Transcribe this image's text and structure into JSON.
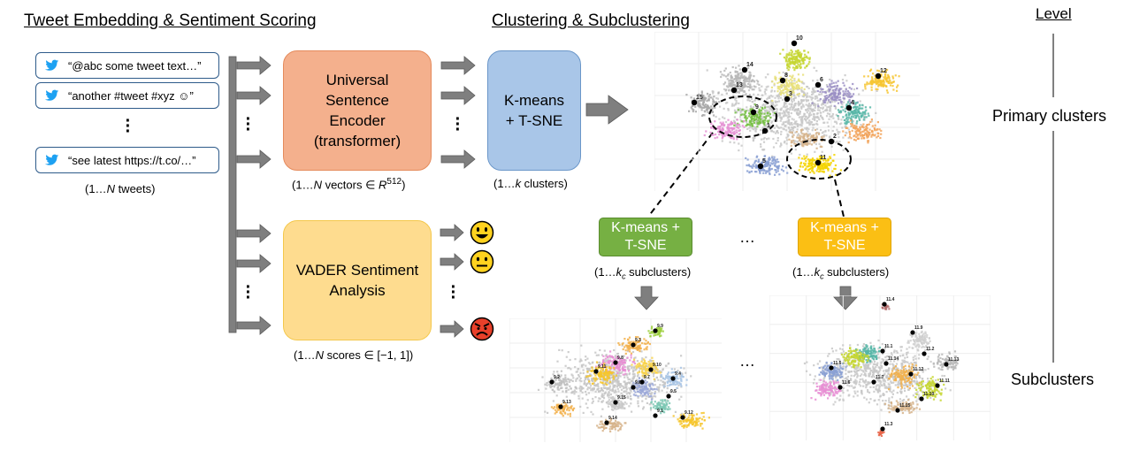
{
  "headings": {
    "left": "Tweet Embedding & Sentiment Scoring",
    "middle": "Clustering & Subclustering",
    "level": "Level"
  },
  "tweets": [
    "“@abc some tweet text…”",
    "“another #tweet #xyz ☺”",
    "“see latest https://t.co/…”"
  ],
  "tweets_caption": "(1…N tweets)",
  "encoder": {
    "label": "Universal Sentence Encoder (transformer)",
    "caption": "(1…N vectors ∈ R^512)"
  },
  "vader": {
    "label": "VADER Sentiment Analysis",
    "caption": "(1…N scores ∈ [−1, 1])"
  },
  "kmeans_main": {
    "label": "K-means + T-SNE",
    "caption": "(1…k clusters)"
  },
  "kmeans_sub_green": {
    "label": "K-means + T-SNE",
    "caption": "(1…k_c subclusters)"
  },
  "kmeans_sub_yellow": {
    "label": "K-means + T-SNE",
    "caption": "(1…k_c subclusters)"
  },
  "ellipsis": "…",
  "levels": {
    "primary": "Primary clusters",
    "sub": "Subclusters"
  },
  "sentiment_icons": [
    "happy-face",
    "neutral-face",
    "angry-face"
  ],
  "cluster_labels_primary": [
    "10",
    "14",
    "12",
    "13",
    "8",
    "15",
    "3",
    "6",
    "9",
    "4",
    "1",
    "2",
    "11",
    "5"
  ],
  "cluster_labels_sub9": [
    "9.9",
    "9.3",
    "9.8",
    "9.11",
    "9.10",
    "9.7",
    "9.4",
    "9.2",
    "9.5",
    "9.13",
    "9.15",
    "9.1",
    "9.14",
    "9.12",
    "9.6"
  ],
  "cluster_labels_sub11": [
    "11.4",
    "11.9",
    "11.1",
    "11.2",
    "11.5",
    "11.14",
    "11.13",
    "11.12",
    "11.7",
    "11.6",
    "11.11",
    "11.10",
    "11.15",
    "11.3"
  ]
}
